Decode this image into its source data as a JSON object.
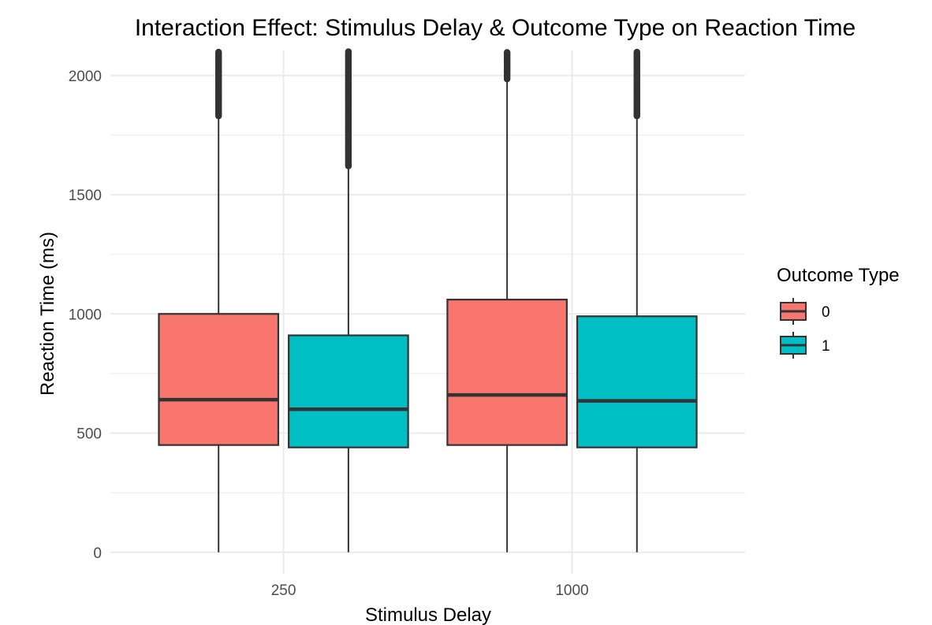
{
  "chart_data": {
    "type": "box",
    "title": "Interaction Effect: Stimulus Delay & Outcome Type on Reaction Time",
    "xlabel": "Stimulus Delay",
    "ylabel": "Reaction Time (ms)",
    "categories": [
      "250",
      "1000"
    ],
    "y_ticks": [
      "0",
      "500",
      "1000",
      "1500",
      "2000"
    ],
    "ylim": [
      -90,
      2105
    ],
    "grid": true,
    "legend": {
      "title": "Outcome Type",
      "position": "right"
    },
    "series": [
      {
        "name": "0",
        "color": "#F8766D",
        "boxes": [
          {
            "category": "250",
            "whisker_low": 0,
            "q1": 450,
            "median": 640,
            "q3": 1000,
            "whisker_high": 1830,
            "outliers_from": 1830,
            "outliers_to": 2100
          },
          {
            "category": "1000",
            "whisker_low": 0,
            "q1": 450,
            "median": 660,
            "q3": 1060,
            "whisker_high": 1985,
            "outliers_from": 1985,
            "outliers_to": 2100
          }
        ]
      },
      {
        "name": "1",
        "color": "#00BFC4",
        "boxes": [
          {
            "category": "250",
            "whisker_low": 0,
            "q1": 440,
            "median": 600,
            "q3": 910,
            "whisker_high": 1620,
            "outliers_from": 1620,
            "outliers_to": 2100
          },
          {
            "category": "1000",
            "whisker_low": 0,
            "q1": 440,
            "median": 635,
            "q3": 990,
            "whisker_high": 1830,
            "outliers_from": 1830,
            "outliers_to": 2100
          }
        ]
      }
    ]
  }
}
